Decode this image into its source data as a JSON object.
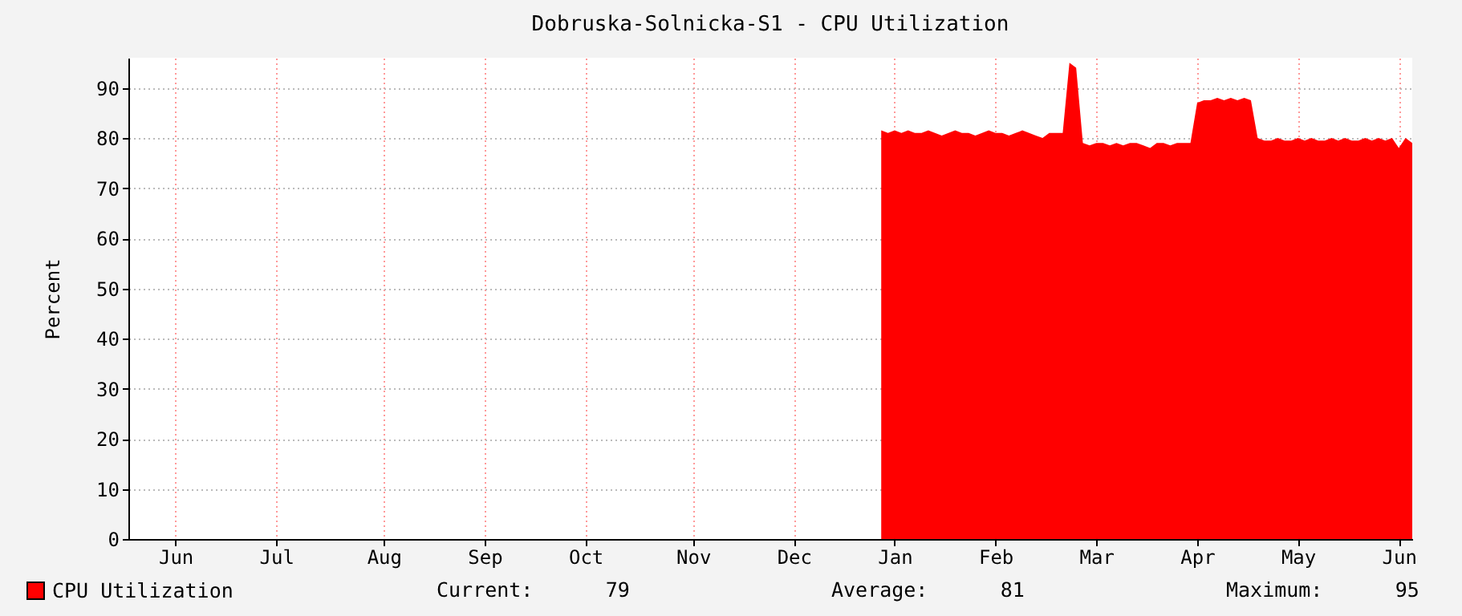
{
  "chart_data": {
    "type": "area",
    "title": "Dobruska-Solnicka-S1 - CPU Utilization",
    "ylabel": "Percent",
    "categories": [
      null,
      null,
      null,
      null,
      null,
      null,
      null,
      "Jun",
      null,
      null,
      null,
      null,
      null,
      null,
      null,
      null,
      null,
      null,
      null,
      null,
      null,
      null,
      "Jul",
      null,
      null,
      null,
      null,
      null,
      null,
      null,
      null,
      null,
      null,
      null,
      null,
      null,
      null,
      null,
      "Aug",
      null,
      null,
      null,
      null,
      null,
      null,
      null,
      null,
      null,
      null,
      null,
      null,
      null,
      null,
      "Sep",
      null,
      null,
      null,
      null,
      null,
      null,
      null,
      null,
      null,
      null,
      null,
      null,
      null,
      null,
      "Oct",
      null,
      null,
      null,
      null,
      null,
      null,
      null,
      null,
      null,
      null,
      null,
      null,
      null,
      null,
      null,
      "Nov",
      null,
      null,
      null,
      null,
      null,
      null,
      null,
      null,
      null,
      null,
      null,
      null,
      null,
      null,
      "Dec",
      null,
      null,
      null,
      null,
      null,
      null,
      null,
      null,
      null,
      null,
      null,
      null,
      null,
      null,
      "Jan",
      null,
      null,
      null,
      null,
      null,
      null,
      null,
      null,
      null,
      null,
      null,
      null,
      null,
      null,
      "Feb",
      null,
      null,
      null,
      null,
      null,
      null,
      null,
      null,
      null,
      null,
      null,
      null,
      null,
      null,
      "Mar",
      null,
      null,
      null,
      null,
      null,
      null,
      null,
      null,
      null,
      null,
      null,
      null,
      null,
      null,
      "Apr",
      null,
      null,
      null,
      null,
      null,
      null,
      null,
      null,
      null,
      null,
      null,
      null,
      null,
      null,
      "May",
      null,
      null,
      null,
      null,
      null,
      null,
      null,
      null,
      null,
      null,
      null,
      null,
      null,
      null,
      "Jun",
      null,
      null
    ],
    "ylim": [
      0,
      96
    ],
    "yticks": [
      0,
      10,
      20,
      30,
      40,
      50,
      60,
      70,
      80,
      90
    ],
    "grid": true,
    "legend": "bottom left",
    "series": [
      {
        "name": "CPU Utilization",
        "color": "#ff0000",
        "values": [
          null,
          null,
          null,
          null,
          null,
          null,
          null,
          null,
          null,
          null,
          null,
          null,
          null,
          null,
          null,
          null,
          null,
          null,
          null,
          null,
          null,
          null,
          null,
          null,
          null,
          null,
          null,
          null,
          null,
          null,
          null,
          null,
          null,
          null,
          null,
          null,
          null,
          null,
          null,
          null,
          null,
          null,
          null,
          null,
          null,
          null,
          null,
          null,
          null,
          null,
          null,
          null,
          null,
          null,
          null,
          null,
          null,
          null,
          null,
          null,
          null,
          null,
          null,
          null,
          null,
          null,
          null,
          null,
          null,
          null,
          null,
          null,
          null,
          null,
          null,
          null,
          null,
          null,
          null,
          null,
          null,
          null,
          null,
          null,
          null,
          null,
          null,
          null,
          null,
          null,
          null,
          null,
          null,
          null,
          null,
          null,
          null,
          null,
          null,
          null,
          null,
          null,
          null,
          null,
          null,
          null,
          null,
          null,
          null,
          null,
          null,
          null,
          81.5,
          81,
          81.5,
          81,
          81.5,
          81,
          81,
          81.5,
          81,
          80.5,
          81,
          81.5,
          81,
          81,
          80.5,
          81,
          81.5,
          81,
          81,
          80.5,
          81,
          81.5,
          81,
          80.5,
          80,
          81,
          81,
          81,
          95,
          94,
          79,
          78.5,
          79,
          79,
          78.5,
          79,
          78.5,
          79,
          79,
          78.5,
          78,
          79,
          79,
          78.5,
          79,
          79,
          79,
          87,
          87.5,
          87.5,
          88,
          87.5,
          88,
          87.5,
          88,
          87.5,
          80,
          79.5,
          79.5,
          80,
          79.5,
          79.5,
          80,
          79.5,
          80,
          79.5,
          79.5,
          80,
          79.5,
          80,
          79.5,
          79.5,
          80,
          79.5,
          80,
          79.5,
          80,
          78,
          80,
          79
        ]
      }
    ],
    "annotations": [
      "Current:      79",
      "Average:      81",
      "Maximum:      95"
    ]
  }
}
